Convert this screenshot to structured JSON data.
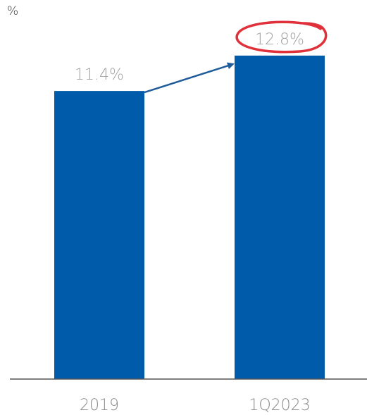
{
  "chart_data": {
    "type": "bar",
    "categories": [
      "2019",
      "1Q2023"
    ],
    "values": [
      11.4,
      12.8
    ],
    "data_labels": [
      "11.4%",
      "12.8%"
    ],
    "unit_label": "%",
    "ylim": [
      0,
      15
    ],
    "grid": false,
    "legend": "none",
    "annotations": {
      "arrow": "from 2019 to 1Q2023",
      "circled_label": "12.8%"
    }
  },
  "colors": {
    "bar": "#005BAA",
    "arrow": "#1F5C99",
    "circle": "#E0303A",
    "axis": "#555555",
    "tick_text": "#8A8A8A",
    "data_label_text": "#A0A0A0"
  }
}
